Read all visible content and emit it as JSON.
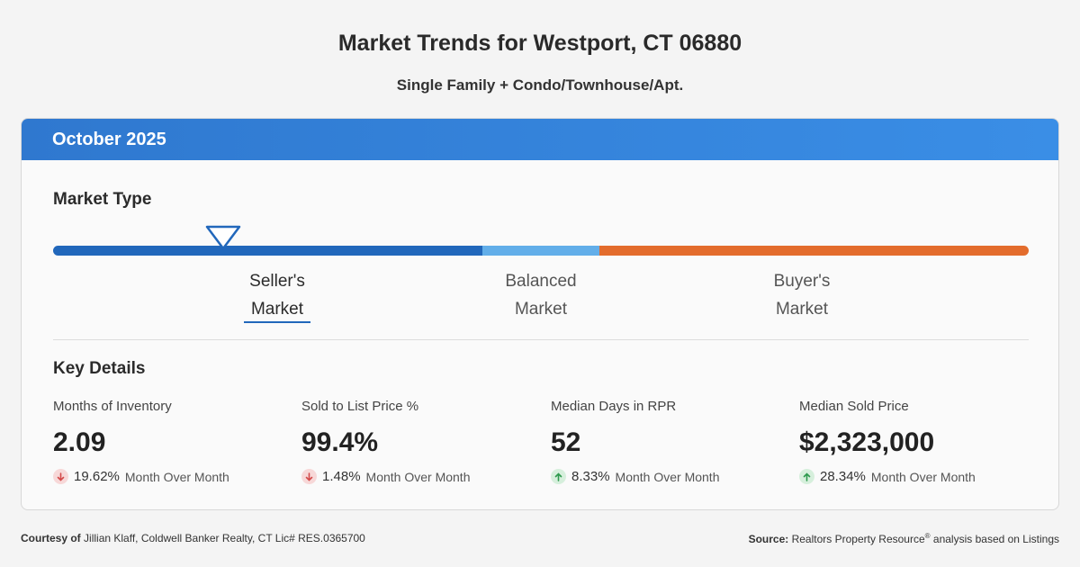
{
  "header": {
    "title": "Market Trends for Westport, CT 06880",
    "subtitle": "Single Family + Condo/Townhouse/Apt."
  },
  "card": {
    "period": "October 2025",
    "market_type": {
      "title": "Market Type",
      "labels": [
        {
          "line1": "Seller's",
          "line2": "Market"
        },
        {
          "line1": "Balanced",
          "line2": "Market"
        },
        {
          "line1": "Buyer's",
          "line2": "Market"
        }
      ],
      "active": "Seller's Market",
      "colors": {
        "seller": "#2167bb",
        "balanced": "#62aee9",
        "buyer": "#e36c2c"
      }
    },
    "key_details": {
      "title": "Key Details",
      "metrics": [
        {
          "label": "Months of Inventory",
          "value": "2.09",
          "direction": "down",
          "change": "19.62%",
          "period": "Month Over Month"
        },
        {
          "label": "Sold to List Price %",
          "value": "99.4%",
          "direction": "down",
          "change": "1.48%",
          "period": "Month Over Month"
        },
        {
          "label": "Median Days in RPR",
          "value": "52",
          "direction": "up",
          "change": "8.33%",
          "period": "Month Over Month"
        },
        {
          "label": "Median Sold Price",
          "value": "$2,323,000",
          "direction": "up",
          "change": "28.34%",
          "period": "Month Over Month"
        }
      ]
    }
  },
  "footer": {
    "courtesy_label": "Courtesy of",
    "courtesy_text": "Jillian Klaff, Coldwell Banker Realty, CT Lic# RES.0365700",
    "source_label": "Source:",
    "source_text_1": "Realtors Property Resource",
    "source_reg": "®",
    "source_text_2": "analysis based on Listings"
  }
}
